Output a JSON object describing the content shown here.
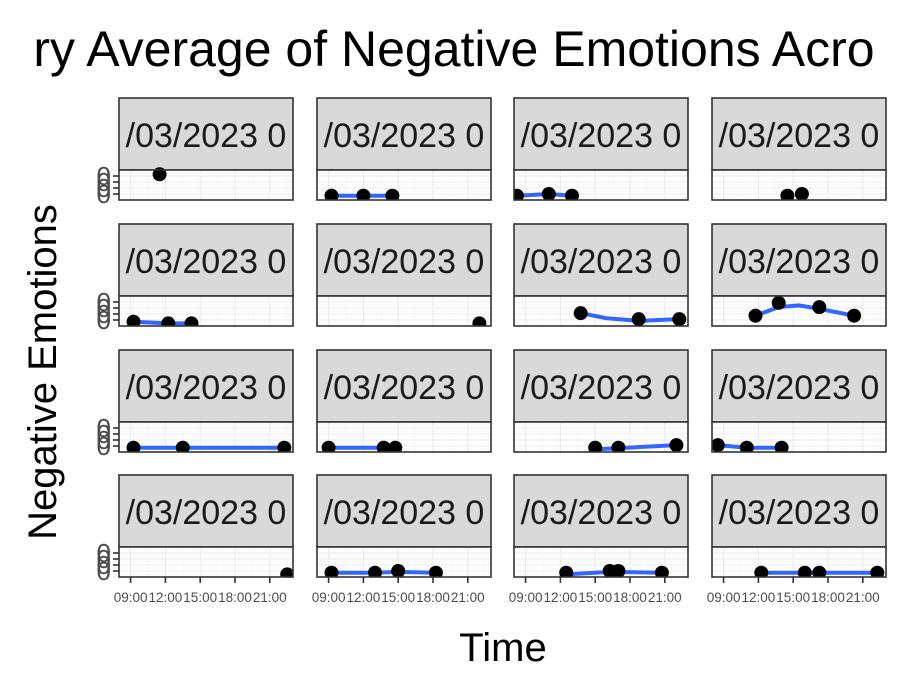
{
  "chart_data": {
    "type": "scatter",
    "title": "ry Average of Negative Emotions Acro",
    "xlabel": "Time",
    "ylabel": "Negative Emotions",
    "x_tick_labels": [
      "09:00",
      "12:00",
      "15:00",
      "18:00",
      "21:00"
    ],
    "y_tick_labels": [
      "0",
      "0",
      "0",
      "0"
    ],
    "xlim": [
      "08:00",
      "23:00"
    ],
    "ylim": [
      0,
      0.35
    ],
    "grid": true,
    "smooth_color": "#3366FF",
    "point_color": "#000000",
    "panels": [
      {
        "strip": "/03/2023 0",
        "points": [
          {
            "x": "11:30",
            "y": 0.3
          }
        ],
        "smooth": []
      },
      {
        "strip": "/03/2023 0",
        "points": [
          {
            "x": "09:15",
            "y": 0.05
          },
          {
            "x": "12:00",
            "y": 0.05
          },
          {
            "x": "14:30",
            "y": 0.05
          }
        ],
        "smooth": [
          {
            "x": "09:15",
            "y": 0.05
          },
          {
            "x": "14:30",
            "y": 0.05
          }
        ]
      },
      {
        "strip": "/03/2023 0",
        "points": [
          {
            "x": "08:15",
            "y": 0.05
          },
          {
            "x": "11:00",
            "y": 0.07
          },
          {
            "x": "13:00",
            "y": 0.05
          }
        ],
        "smooth": [
          {
            "x": "08:15",
            "y": 0.05
          },
          {
            "x": "11:00",
            "y": 0.07
          },
          {
            "x": "13:00",
            "y": 0.05
          }
        ]
      },
      {
        "strip": "/03/2023 0",
        "points": [
          {
            "x": "14:30",
            "y": 0.05
          },
          {
            "x": "15:45",
            "y": 0.07
          }
        ],
        "smooth": []
      },
      {
        "strip": "/03/2023 0",
        "points": [
          {
            "x": "09:15",
            "y": 0.05
          },
          {
            "x": "12:15",
            "y": 0.03
          },
          {
            "x": "14:15",
            "y": 0.03
          }
        ],
        "smooth": [
          {
            "x": "09:15",
            "y": 0.05
          },
          {
            "x": "12:15",
            "y": 0.03
          },
          {
            "x": "14:15",
            "y": 0.03
          }
        ]
      },
      {
        "strip": "/03/2023 0",
        "points": [
          {
            "x": "22:00",
            "y": 0.03
          }
        ],
        "smooth": []
      },
      {
        "strip": "/03/2023 0",
        "points": [
          {
            "x": "13:45",
            "y": 0.15
          },
          {
            "x": "18:45",
            "y": 0.08
          },
          {
            "x": "22:15",
            "y": 0.08
          }
        ],
        "smooth": [
          {
            "x": "13:45",
            "y": 0.15
          },
          {
            "x": "16:00",
            "y": 0.09
          },
          {
            "x": "18:45",
            "y": 0.06
          },
          {
            "x": "22:15",
            "y": 0.08
          }
        ]
      },
      {
        "strip": "/03/2023 0",
        "points": [
          {
            "x": "11:45",
            "y": 0.12
          },
          {
            "x": "13:45",
            "y": 0.27
          },
          {
            "x": "17:15",
            "y": 0.22
          },
          {
            "x": "20:15",
            "y": 0.12
          }
        ],
        "smooth": [
          {
            "x": "11:45",
            "y": 0.12
          },
          {
            "x": "13:45",
            "y": 0.22
          },
          {
            "x": "15:30",
            "y": 0.24
          },
          {
            "x": "17:15",
            "y": 0.2
          },
          {
            "x": "20:15",
            "y": 0.12
          }
        ]
      },
      {
        "strip": "/03/2023 0",
        "points": [
          {
            "x": "09:15",
            "y": 0.05
          },
          {
            "x": "13:30",
            "y": 0.05
          },
          {
            "x": "22:15",
            "y": 0.05
          }
        ],
        "smooth": [
          {
            "x": "09:15",
            "y": 0.05
          },
          {
            "x": "22:15",
            "y": 0.05
          }
        ]
      },
      {
        "strip": "/03/2023 0",
        "points": [
          {
            "x": "09:00",
            "y": 0.05
          },
          {
            "x": "13:45",
            "y": 0.05
          },
          {
            "x": "14:45",
            "y": 0.05
          }
        ],
        "smooth": [
          {
            "x": "09:00",
            "y": 0.05
          },
          {
            "x": "14:45",
            "y": 0.05
          }
        ]
      },
      {
        "strip": "/03/2023 0",
        "points": [
          {
            "x": "15:00",
            "y": 0.05
          },
          {
            "x": "17:00",
            "y": 0.05
          },
          {
            "x": "22:00",
            "y": 0.08
          }
        ],
        "smooth": [
          {
            "x": "15:00",
            "y": 0.03
          },
          {
            "x": "22:00",
            "y": 0.08
          }
        ]
      },
      {
        "strip": "/03/2023 0",
        "points": [
          {
            "x": "08:30",
            "y": 0.08
          },
          {
            "x": "11:00",
            "y": 0.05
          },
          {
            "x": "14:00",
            "y": 0.05
          }
        ],
        "smooth": [
          {
            "x": "08:30",
            "y": 0.08
          },
          {
            "x": "11:00",
            "y": 0.05
          },
          {
            "x": "14:00",
            "y": 0.05
          }
        ]
      },
      {
        "strip": "/03/2023 0",
        "points": [
          {
            "x": "22:30",
            "y": 0.03
          }
        ],
        "smooth": []
      },
      {
        "strip": "/03/2023 0",
        "points": [
          {
            "x": "09:15",
            "y": 0.05
          },
          {
            "x": "13:00",
            "y": 0.05
          },
          {
            "x": "15:00",
            "y": 0.07
          },
          {
            "x": "18:15",
            "y": 0.05
          }
        ],
        "smooth": [
          {
            "x": "09:15",
            "y": 0.05
          },
          {
            "x": "13:00",
            "y": 0.05
          },
          {
            "x": "15:00",
            "y": 0.06
          },
          {
            "x": "18:15",
            "y": 0.05
          }
        ]
      },
      {
        "strip": "/03/2023 0",
        "points": [
          {
            "x": "12:30",
            "y": 0.05
          },
          {
            "x": "16:15",
            "y": 0.07
          },
          {
            "x": "17:00",
            "y": 0.07
          },
          {
            "x": "20:45",
            "y": 0.05
          }
        ],
        "smooth": [
          {
            "x": "12:30",
            "y": 0.03
          },
          {
            "x": "16:15",
            "y": 0.06
          },
          {
            "x": "20:45",
            "y": 0.05
          }
        ]
      },
      {
        "strip": "/03/2023 0",
        "points": [
          {
            "x": "12:15",
            "y": 0.05
          },
          {
            "x": "16:00",
            "y": 0.05
          },
          {
            "x": "17:15",
            "y": 0.05
          },
          {
            "x": "22:15",
            "y": 0.05
          }
        ],
        "smooth": [
          {
            "x": "12:15",
            "y": 0.05
          },
          {
            "x": "22:15",
            "y": 0.05
          }
        ]
      }
    ]
  }
}
